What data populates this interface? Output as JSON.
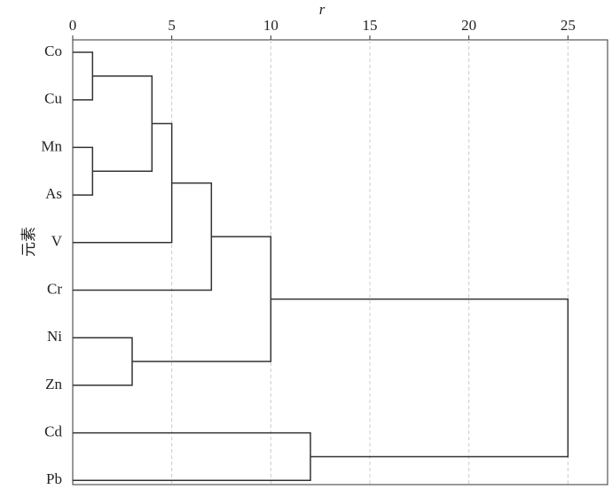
{
  "chart_data": {
    "type": "dendrogram",
    "xlabel": "r",
    "ylabel": "元素",
    "labels": [
      "Co",
      "Cu",
      "Mn",
      "As",
      "V",
      "Cr",
      "Ni",
      "Zn",
      "Cd",
      "Pb"
    ],
    "merges": [
      {
        "left": 0,
        "right": 1,
        "height": 1
      },
      {
        "left": 2,
        "right": 3,
        "height": 1
      },
      {
        "left": 10,
        "right": 11,
        "height": 4
      },
      {
        "left": 12,
        "right": 4,
        "height": 5
      },
      {
        "left": 13,
        "right": 5,
        "height": 7
      },
      {
        "left": 6,
        "right": 7,
        "height": 3
      },
      {
        "left": 14,
        "right": 15,
        "height": 10
      },
      {
        "left": 8,
        "right": 9,
        "height": 12
      },
      {
        "left": 16,
        "right": 17,
        "height": 25
      }
    ],
    "xlim": [
      0,
      27
    ],
    "xticks": [
      0,
      5,
      10,
      15,
      20,
      25
    ],
    "grid": true,
    "color": "#333333"
  }
}
